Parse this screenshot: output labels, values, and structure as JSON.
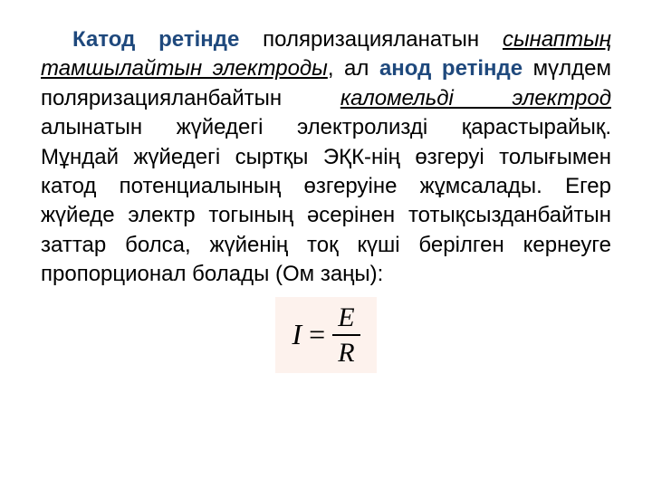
{
  "paragraph": {
    "part1_bold": "Катод ретінде",
    "part2": " поляризацияланатын ",
    "part3_italic": "сынаптың тамшылайтын электроды",
    "part4": ", ал ",
    "part5_bold": "анод ретінде",
    "part6": " мүлдем поляризацияланбайтын ",
    "part7_italic": "каломельді электрод",
    "part8": " алынатын жүйедегі электролизді қарастырайық. Мұндай жүйедегі сыртқы ЭҚК-нің өзгеруі толығымен катод потенциалының өзгеруіне жұмсалады. Егер жүйеде электр тогының әсерінен тотықсызданбайтын заттар болса, жүйенің тоқ күші берілген кернеуге пропорционал болады (Ом заңы):"
  },
  "formula": {
    "lhs": "I",
    "equals": "=",
    "numerator": "E",
    "denominator": "R"
  },
  "styling": {
    "text_color": "#000000",
    "bold_color": "#1f497d",
    "formula_bg": "#fdf2ed",
    "page_bg": "#ffffff",
    "font_size_body": 24,
    "font_size_formula": 32
  }
}
